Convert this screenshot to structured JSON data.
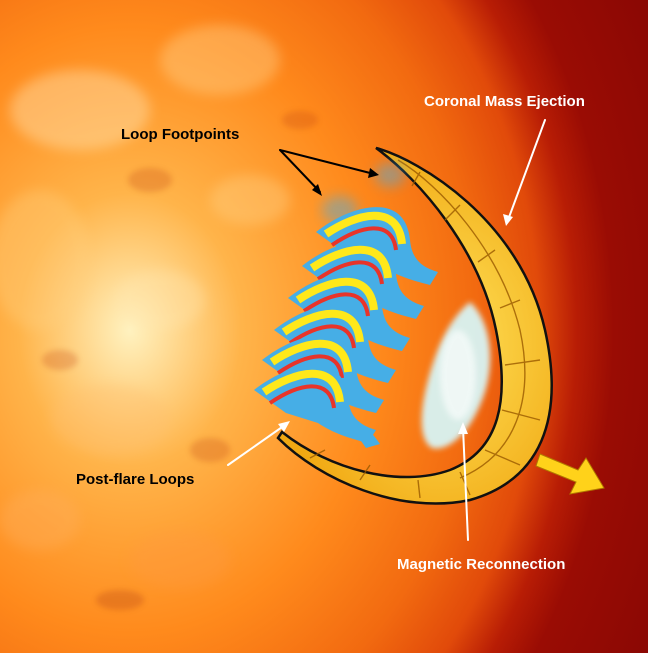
{
  "labels": {
    "coronal_mass_ejection": "Coronal Mass Ejection",
    "loop_footpoints": "Loop Footpoints",
    "post_flare_loops": "Post-flare Loops",
    "magnetic_reconnection": "Magnetic Reconnection"
  },
  "colors": {
    "sun_core": "#ffb44a",
    "sun_limb": "#e14a0a",
    "corona_background": "#850604",
    "cme_fill": "#f7c21a",
    "loop_yellow": "#ffe81a",
    "loop_red": "#e8342a",
    "loop_footpoint_blue": "#46aee6",
    "reconnection_glow": "#d8f4f4",
    "arrow_yellow": "#ffd21a"
  }
}
